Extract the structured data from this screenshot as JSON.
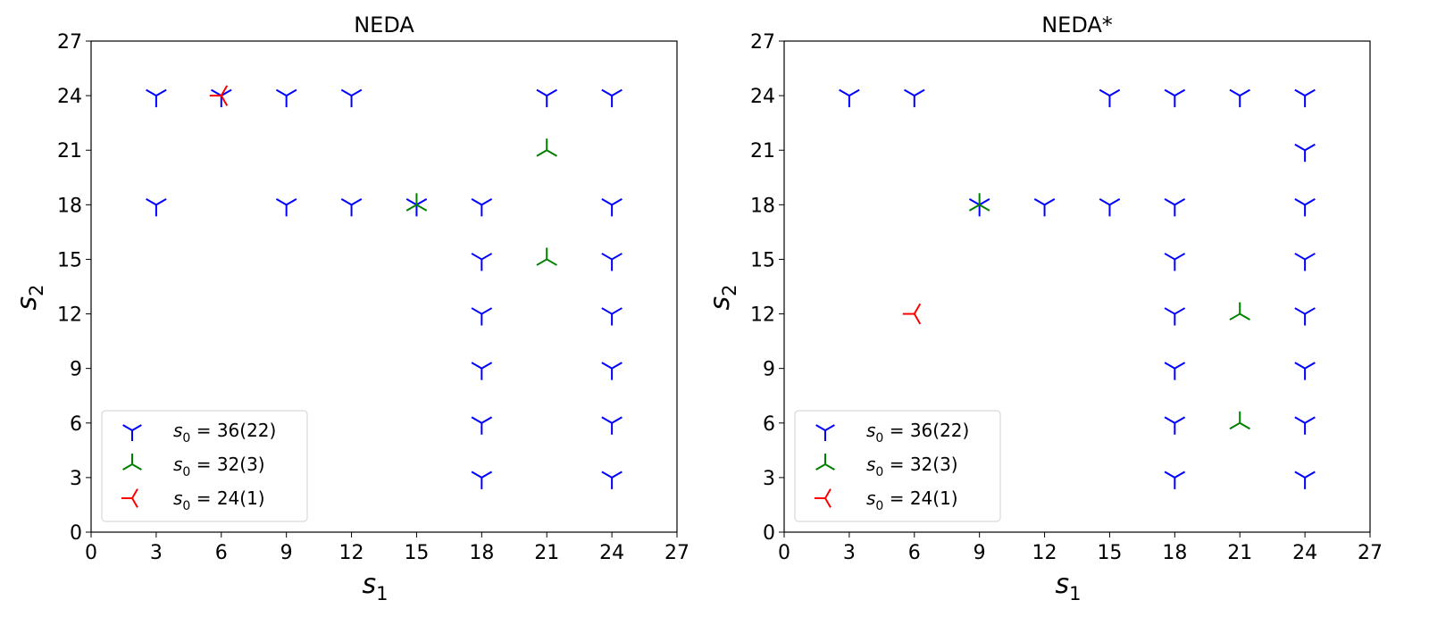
{
  "chart_data": [
    {
      "type": "scatter",
      "title": "NEDA",
      "xlabel": "s1",
      "ylabel": "s2",
      "xlim": [
        0,
        27
      ],
      "ylim": [
        0,
        27
      ],
      "xticks": [
        0,
        3,
        6,
        9,
        12,
        15,
        18,
        21,
        24,
        27
      ],
      "yticks": [
        0,
        3,
        6,
        9,
        12,
        15,
        18,
        21,
        24,
        27
      ],
      "legend_position": "lower-left",
      "series": [
        {
          "name": "s0 = 36(22)",
          "color": "#0000ff",
          "marker": "tri-down",
          "points": [
            [
              3,
              24
            ],
            [
              9,
              24
            ],
            [
              12,
              24
            ],
            [
              21,
              24
            ],
            [
              24,
              24
            ],
            [
              3,
              18
            ],
            [
              9,
              18
            ],
            [
              12,
              18
            ],
            [
              15,
              18
            ],
            [
              18,
              18
            ],
            [
              24,
              18
            ],
            [
              18,
              15
            ],
            [
              24,
              15
            ],
            [
              18,
              12
            ],
            [
              24,
              12
            ],
            [
              18,
              9
            ],
            [
              24,
              9
            ],
            [
              18,
              6
            ],
            [
              24,
              6
            ],
            [
              18,
              3
            ],
            [
              24,
              3
            ],
            [
              6,
              24
            ]
          ]
        },
        {
          "name": "s0 = 32(3)",
          "color": "#008000",
          "marker": "tri-up",
          "points": [
            [
              21,
              21
            ],
            [
              15,
              18
            ],
            [
              21,
              15
            ]
          ]
        },
        {
          "name": "s0 = 24(1)",
          "color": "#ff0000",
          "marker": "tri-left",
          "points": [
            [
              6,
              24
            ]
          ]
        }
      ]
    },
    {
      "type": "scatter",
      "title": "NEDA*",
      "xlabel": "s1",
      "ylabel": "s2",
      "xlim": [
        0,
        27
      ],
      "ylim": [
        0,
        27
      ],
      "xticks": [
        0,
        3,
        6,
        9,
        12,
        15,
        18,
        21,
        24,
        27
      ],
      "yticks": [
        0,
        3,
        6,
        9,
        12,
        15,
        18,
        21,
        24,
        27
      ],
      "legend_position": "lower-left",
      "series": [
        {
          "name": "s0 = 36(22)",
          "color": "#0000ff",
          "marker": "tri-down",
          "points": [
            [
              3,
              24
            ],
            [
              6,
              24
            ],
            [
              15,
              24
            ],
            [
              18,
              24
            ],
            [
              21,
              24
            ],
            [
              24,
              24
            ],
            [
              24,
              21
            ],
            [
              9,
              18
            ],
            [
              12,
              18
            ],
            [
              15,
              18
            ],
            [
              18,
              18
            ],
            [
              24,
              18
            ],
            [
              18,
              15
            ],
            [
              24,
              15
            ],
            [
              18,
              12
            ],
            [
              24,
              12
            ],
            [
              18,
              9
            ],
            [
              24,
              9
            ],
            [
              18,
              6
            ],
            [
              24,
              6
            ],
            [
              18,
              3
            ],
            [
              24,
              3
            ]
          ]
        },
        {
          "name": "s0 = 32(3)",
          "color": "#008000",
          "marker": "tri-up",
          "points": [
            [
              9,
              18
            ],
            [
              21,
              12
            ],
            [
              21,
              6
            ]
          ]
        },
        {
          "name": "s0 = 24(1)",
          "color": "#ff0000",
          "marker": "tri-left",
          "points": [
            [
              6,
              12
            ]
          ]
        }
      ]
    }
  ]
}
